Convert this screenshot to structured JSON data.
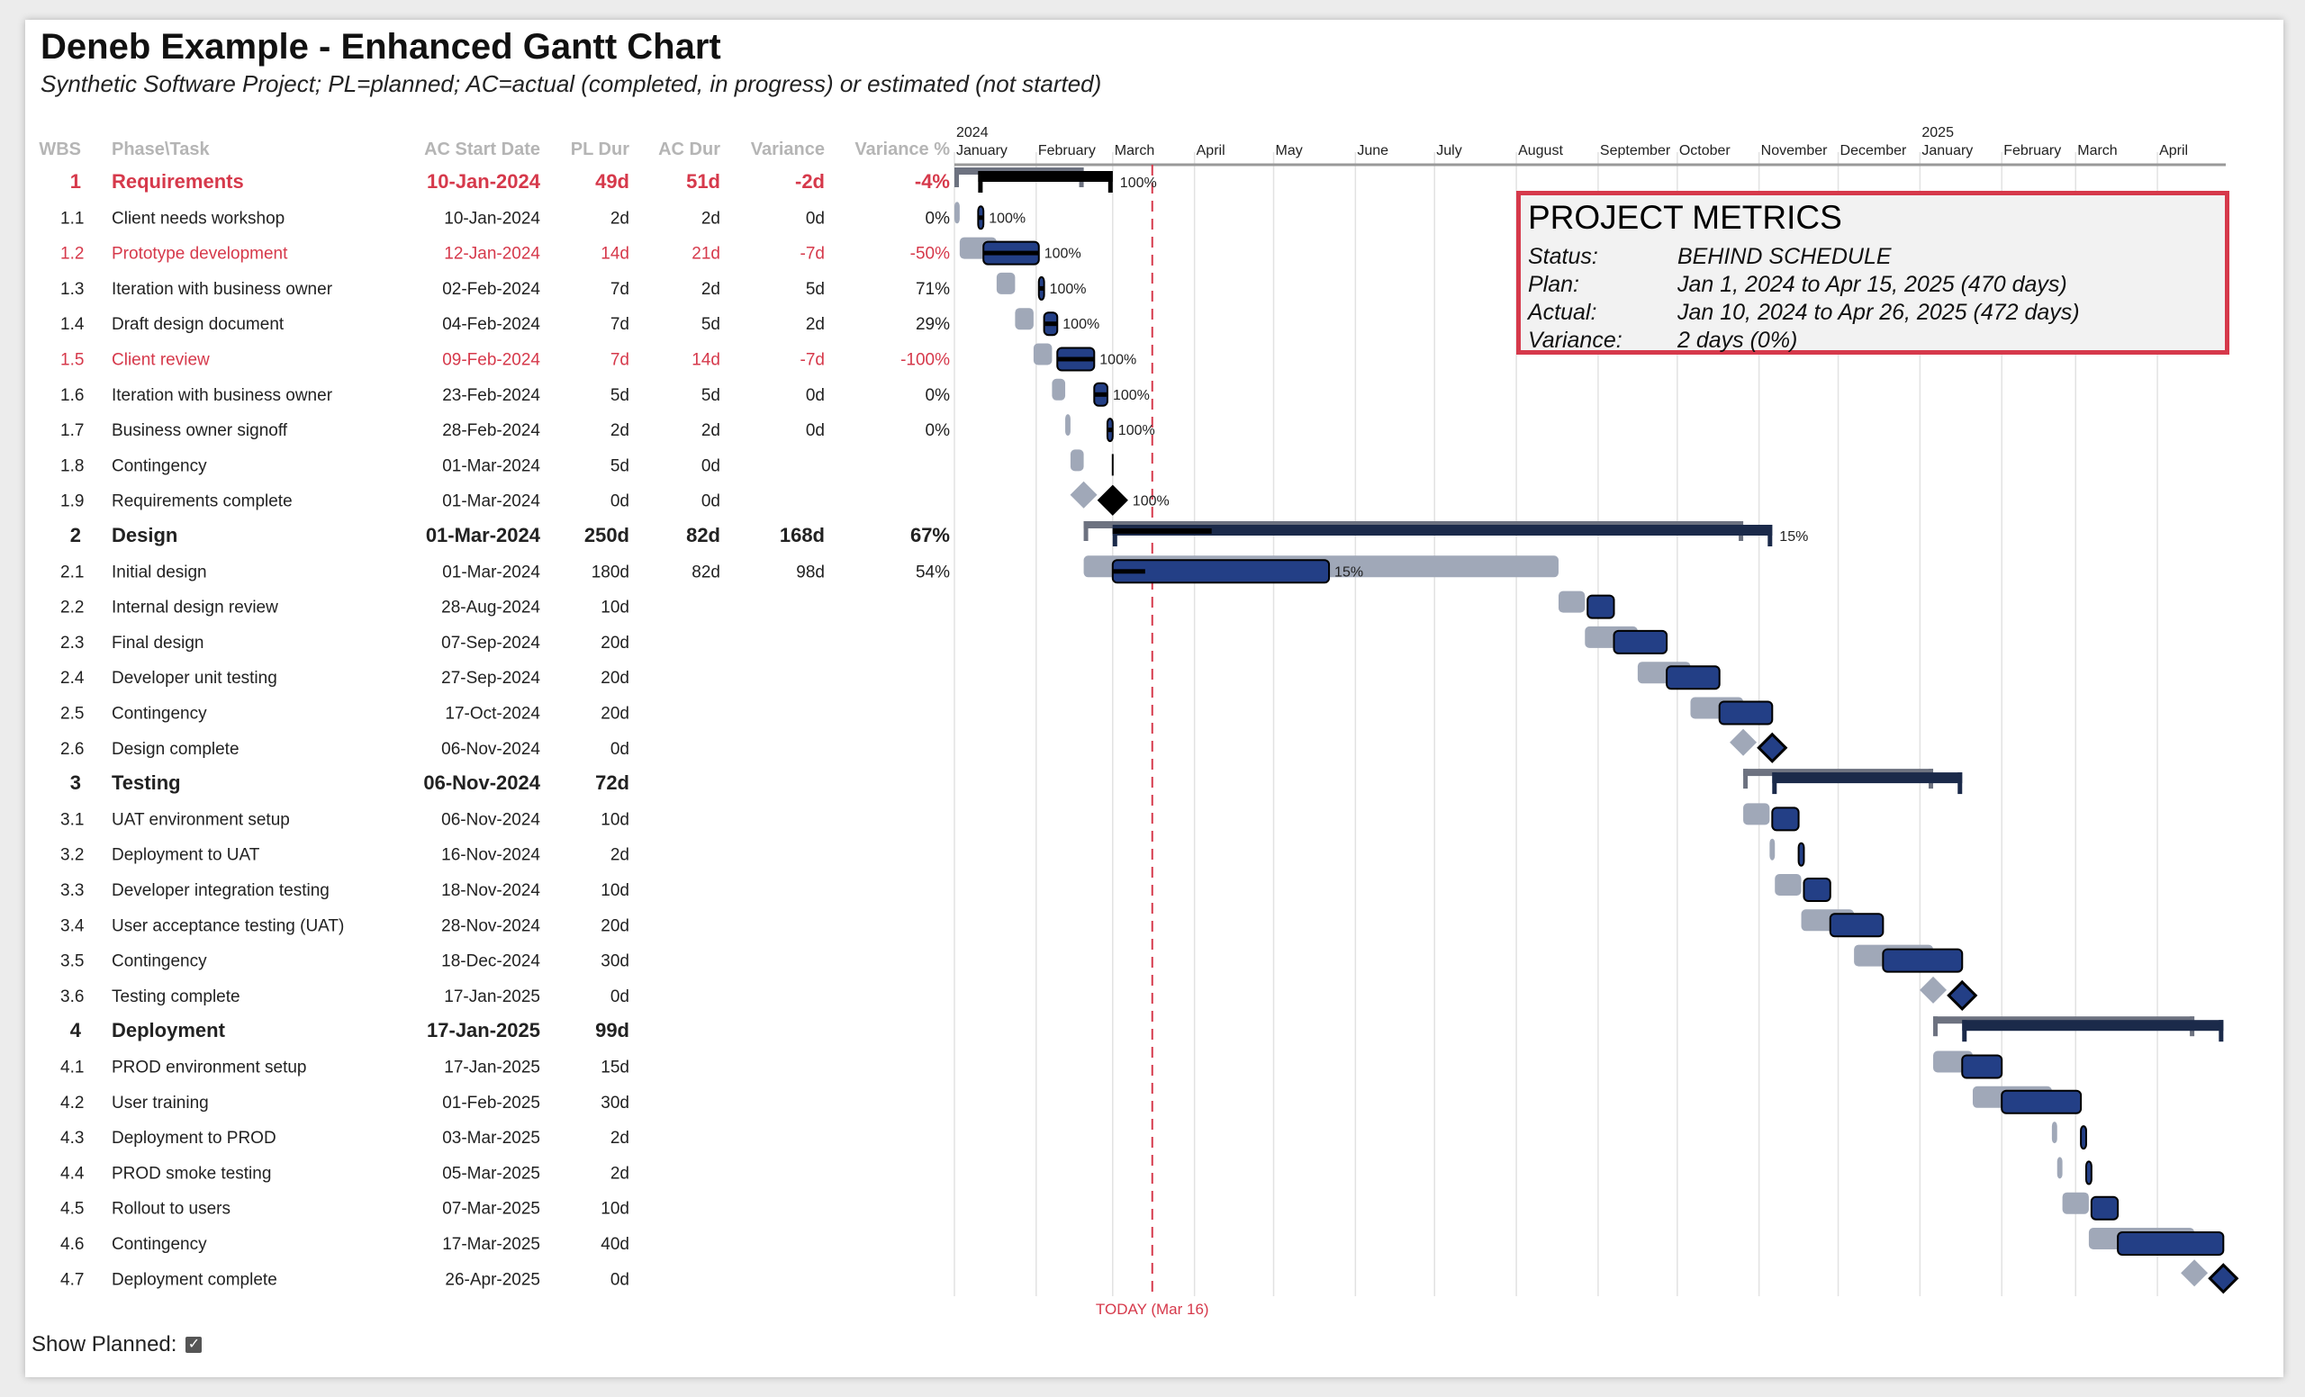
{
  "header": {
    "title": "Deneb Example - Enhanced Gantt Chart",
    "subtitle": "Synthetic Software Project; PL=planned; AC=actual (completed, in progress) or estimated (not started)"
  },
  "metrics": {
    "title": "PROJECT METRICS",
    "rows": [
      {
        "label": "Status:",
        "value": "BEHIND SCHEDULE"
      },
      {
        "label": "Plan:",
        "value": "Jan 1, 2024 to Apr 15, 2025 (470 days)"
      },
      {
        "label": "Actual:",
        "value": "Jan 10, 2024 to Apr 26, 2025 (472 days)"
      },
      {
        "label": "Variance:",
        "value": "2 days (0%)"
      }
    ]
  },
  "show_planned": {
    "label": "Show Planned:",
    "checked": true
  },
  "colors": {
    "late": "#d6394b",
    "actual": "#233f86",
    "planned": "#a0a8b8",
    "summary": "#1b2a4a",
    "today": "#d6394b",
    "header": "#b5b5b5"
  },
  "chart_data": {
    "type": "gantt",
    "columns": [
      "WBS",
      "Phase\\Task",
      "AC Start Date",
      "PL Dur",
      "AC Dur",
      "Variance",
      "Variance %"
    ],
    "years": [
      "2024",
      "2025"
    ],
    "months": [
      "January",
      "February",
      "March",
      "April",
      "May",
      "June",
      "July",
      "August",
      "September",
      "October",
      "November",
      "December",
      "January",
      "February",
      "March",
      "April"
    ],
    "today": {
      "date": "2024-03-16",
      "label": "TODAY (Mar 16)"
    },
    "rows": [
      {
        "wbs": "1",
        "task": "Requirements",
        "ac_start": "10-Jan-2024",
        "pl_dur": "49d",
        "ac_dur": "51d",
        "variance": "-2d",
        "variance_pct": "-4%",
        "phase": true,
        "late": true,
        "progress": "100%"
      },
      {
        "wbs": "1.1",
        "task": "Client needs workshop",
        "ac_start": "10-Jan-2024",
        "pl_dur": "2d",
        "ac_dur": "2d",
        "variance": "0d",
        "variance_pct": "0%",
        "pl_start": "2024-01-01",
        "progress": "100%"
      },
      {
        "wbs": "1.2",
        "task": "Prototype development",
        "ac_start": "12-Jan-2024",
        "pl_dur": "14d",
        "ac_dur": "21d",
        "variance": "-7d",
        "variance_pct": "-50%",
        "late": true,
        "pl_start": "2024-01-03",
        "progress": "100%"
      },
      {
        "wbs": "1.3",
        "task": "Iteration with business owner",
        "ac_start": "02-Feb-2024",
        "pl_dur": "7d",
        "ac_dur": "2d",
        "variance": "5d",
        "variance_pct": "71%",
        "pl_start": "2024-01-17",
        "progress": "100%"
      },
      {
        "wbs": "1.4",
        "task": "Draft design document",
        "ac_start": "04-Feb-2024",
        "pl_dur": "7d",
        "ac_dur": "5d",
        "variance": "2d",
        "variance_pct": "29%",
        "pl_start": "2024-01-24",
        "progress": "100%"
      },
      {
        "wbs": "1.5",
        "task": "Client review",
        "ac_start": "09-Feb-2024",
        "pl_dur": "7d",
        "ac_dur": "14d",
        "variance": "-7d",
        "variance_pct": "-100%",
        "late": true,
        "pl_start": "2024-01-31",
        "progress": "100%"
      },
      {
        "wbs": "1.6",
        "task": "Iteration with business owner",
        "ac_start": "23-Feb-2024",
        "pl_dur": "5d",
        "ac_dur": "5d",
        "variance": "0d",
        "variance_pct": "0%",
        "pl_start": "2024-02-07",
        "progress": "100%"
      },
      {
        "wbs": "1.7",
        "task": "Business owner signoff",
        "ac_start": "28-Feb-2024",
        "pl_dur": "2d",
        "ac_dur": "2d",
        "variance": "0d",
        "variance_pct": "0%",
        "pl_start": "2024-02-12",
        "progress": "100%"
      },
      {
        "wbs": "1.8",
        "task": "Contingency",
        "ac_start": "01-Mar-2024",
        "pl_dur": "5d",
        "ac_dur": "0d",
        "variance": "",
        "variance_pct": "",
        "pl_start": "2024-02-14",
        "progress": ""
      },
      {
        "wbs": "1.9",
        "task": "Requirements complete",
        "ac_start": "01-Mar-2024",
        "pl_dur": "0d",
        "ac_dur": "0d",
        "variance": "",
        "variance_pct": "",
        "pl_start": "2024-02-19",
        "progress": "100%",
        "milestone": true
      },
      {
        "wbs": "2",
        "task": "Design",
        "ac_start": "01-Mar-2024",
        "pl_dur": "250d",
        "ac_dur": "82d",
        "variance": "168d",
        "variance_pct": "67%",
        "phase": true,
        "progress": "15%"
      },
      {
        "wbs": "2.1",
        "task": "Initial design",
        "ac_start": "01-Mar-2024",
        "pl_dur": "180d",
        "ac_dur": "82d",
        "variance": "98d",
        "variance_pct": "54%",
        "pl_start": "2024-02-19",
        "progress": "15%"
      },
      {
        "wbs": "2.2",
        "task": "Internal design review",
        "ac_start": "28-Aug-2024",
        "pl_dur": "10d",
        "ac_dur": "",
        "variance": "",
        "variance_pct": "",
        "pl_start": "2024-08-17",
        "progress": ""
      },
      {
        "wbs": "2.3",
        "task": "Final design",
        "ac_start": "07-Sep-2024",
        "pl_dur": "20d",
        "ac_dur": "",
        "variance": "",
        "variance_pct": "",
        "pl_start": "2024-08-27",
        "progress": ""
      },
      {
        "wbs": "2.4",
        "task": "Developer unit testing",
        "ac_start": "27-Sep-2024",
        "pl_dur": "20d",
        "ac_dur": "",
        "variance": "",
        "variance_pct": "",
        "pl_start": "2024-09-16",
        "progress": ""
      },
      {
        "wbs": "2.5",
        "task": "Contingency",
        "ac_start": "17-Oct-2024",
        "pl_dur": "20d",
        "ac_dur": "",
        "variance": "",
        "variance_pct": "",
        "pl_start": "2024-10-06",
        "progress": ""
      },
      {
        "wbs": "2.6",
        "task": "Design complete",
        "ac_start": "06-Nov-2024",
        "pl_dur": "0d",
        "ac_dur": "",
        "variance": "",
        "variance_pct": "",
        "pl_start": "2024-10-26",
        "progress": "",
        "milestone": true
      },
      {
        "wbs": "3",
        "task": "Testing",
        "ac_start": "06-Nov-2024",
        "pl_dur": "72d",
        "ac_dur": "",
        "variance": "",
        "variance_pct": "",
        "phase": true,
        "progress": ""
      },
      {
        "wbs": "3.1",
        "task": "UAT environment setup",
        "ac_start": "06-Nov-2024",
        "pl_dur": "10d",
        "ac_dur": "",
        "variance": "",
        "variance_pct": "",
        "pl_start": "2024-10-26",
        "progress": ""
      },
      {
        "wbs": "3.2",
        "task": "Deployment to UAT",
        "ac_start": "16-Nov-2024",
        "pl_dur": "2d",
        "ac_dur": "",
        "variance": "",
        "variance_pct": "",
        "pl_start": "2024-11-05",
        "progress": ""
      },
      {
        "wbs": "3.3",
        "task": "Developer integration testing",
        "ac_start": "18-Nov-2024",
        "pl_dur": "10d",
        "ac_dur": "",
        "variance": "",
        "variance_pct": "",
        "pl_start": "2024-11-07",
        "progress": ""
      },
      {
        "wbs": "3.4",
        "task": "User acceptance testing (UAT)",
        "ac_start": "28-Nov-2024",
        "pl_dur": "20d",
        "ac_dur": "",
        "variance": "",
        "variance_pct": "",
        "pl_start": "2024-11-17",
        "progress": ""
      },
      {
        "wbs": "3.5",
        "task": "Contingency",
        "ac_start": "18-Dec-2024",
        "pl_dur": "30d",
        "ac_dur": "",
        "variance": "",
        "variance_pct": "",
        "pl_start": "2024-12-07",
        "progress": ""
      },
      {
        "wbs": "3.6",
        "task": "Testing complete",
        "ac_start": "17-Jan-2025",
        "pl_dur": "0d",
        "ac_dur": "",
        "variance": "",
        "variance_pct": "",
        "pl_start": "2025-01-06",
        "progress": "",
        "milestone": true
      },
      {
        "wbs": "4",
        "task": "Deployment",
        "ac_start": "17-Jan-2025",
        "pl_dur": "99d",
        "ac_dur": "",
        "variance": "",
        "variance_pct": "",
        "phase": true,
        "progress": ""
      },
      {
        "wbs": "4.1",
        "task": "PROD environment setup",
        "ac_start": "17-Jan-2025",
        "pl_dur": "15d",
        "ac_dur": "",
        "variance": "",
        "variance_pct": "",
        "pl_start": "2025-01-06",
        "progress": ""
      },
      {
        "wbs": "4.2",
        "task": "User training",
        "ac_start": "01-Feb-2025",
        "pl_dur": "30d",
        "ac_dur": "",
        "variance": "",
        "variance_pct": "",
        "pl_start": "2025-01-21",
        "progress": ""
      },
      {
        "wbs": "4.3",
        "task": "Deployment to PROD",
        "ac_start": "03-Mar-2025",
        "pl_dur": "2d",
        "ac_dur": "",
        "variance": "",
        "variance_pct": "",
        "pl_start": "2025-02-20",
        "progress": ""
      },
      {
        "wbs": "4.4",
        "task": "PROD smoke testing",
        "ac_start": "05-Mar-2025",
        "pl_dur": "2d",
        "ac_dur": "",
        "variance": "",
        "variance_pct": "",
        "pl_start": "2025-02-22",
        "progress": ""
      },
      {
        "wbs": "4.5",
        "task": "Rollout to users",
        "ac_start": "07-Mar-2025",
        "pl_dur": "10d",
        "ac_dur": "",
        "variance": "",
        "variance_pct": "",
        "pl_start": "2025-02-24",
        "progress": ""
      },
      {
        "wbs": "4.6",
        "task": "Contingency",
        "ac_start": "17-Mar-2025",
        "pl_dur": "40d",
        "ac_dur": "",
        "variance": "",
        "variance_pct": "",
        "pl_start": "2025-03-06",
        "progress": ""
      },
      {
        "wbs": "4.7",
        "task": "Deployment complete",
        "ac_start": "26-Apr-2025",
        "pl_dur": "0d",
        "ac_dur": "",
        "variance": "",
        "variance_pct": "",
        "pl_start": "2025-04-15",
        "progress": "",
        "milestone": true
      }
    ]
  }
}
